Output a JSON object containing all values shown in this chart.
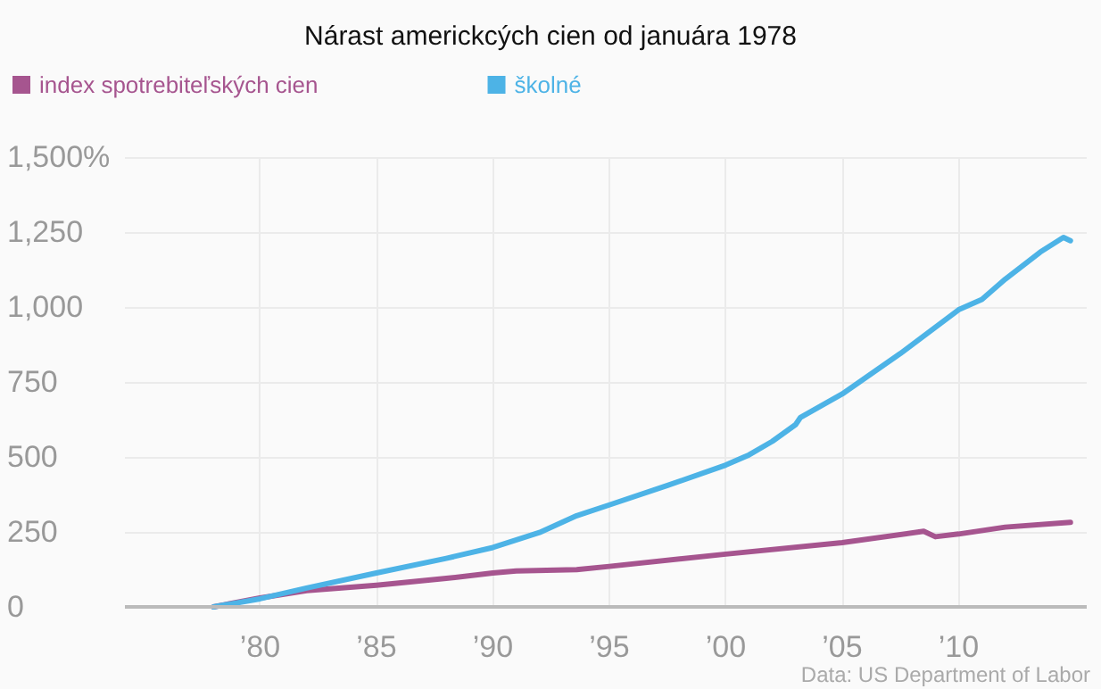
{
  "chart_data": {
    "type": "line",
    "title": "Nárast americkcých cien od januára 1978",
    "annotations": [
      "Data: US Department of Labor"
    ],
    "series": [
      {
        "name": "index spotrebiteľských cien",
        "color": "#a6558f",
        "x": [
          1978,
          1980,
          1982,
          1985,
          1988,
          1990,
          1991,
          1993.6,
          1995,
          2000,
          2005,
          2008.5,
          2009,
          2010,
          2012,
          2014.8
        ],
        "values": [
          0,
          30,
          54,
          72,
          95,
          113,
          120,
          124,
          135,
          176,
          214,
          252,
          234,
          243,
          266,
          282
        ]
      },
      {
        "name": "školné",
        "color": "#4db3e6",
        "x": [
          1978,
          1980,
          1982,
          1985,
          1988,
          1990,
          1992,
          1993.6,
          1995,
          1997.5,
          2000,
          2001,
          2002,
          2003,
          2003.2,
          2005,
          2007.5,
          2010,
          2011,
          2012,
          2013.5,
          2014.5,
          2014.8
        ],
        "values": [
          0,
          27,
          63,
          113,
          162,
          198,
          248,
          304,
          340,
          405,
          473,
          507,
          552,
          608,
          631,
          710,
          845,
          991,
          1025,
          1093,
          1183,
          1232,
          1221
        ]
      }
    ],
    "xlim": [
      1974.2,
      2015.5
    ],
    "xticks": [
      {
        "value": 1980,
        "label": "’80"
      },
      {
        "value": 1985,
        "label": "’85"
      },
      {
        "value": 1990,
        "label": "’90"
      },
      {
        "value": 1995,
        "label": "’95"
      },
      {
        "value": 2000,
        "label": "’00"
      },
      {
        "value": 2005,
        "label": "’05"
      },
      {
        "value": 2010,
        "label": "’10"
      }
    ],
    "ylim": [
      0,
      1500
    ],
    "yticks": [
      0,
      250,
      500,
      750,
      {
        "value": 1000,
        "label": "1,000"
      },
      {
        "value": 1250,
        "label": "1,250"
      },
      {
        "value": 1500,
        "label": "1,500%"
      }
    ],
    "grid": true,
    "legend": "top left",
    "marker": "none",
    "line_style": "solid"
  }
}
